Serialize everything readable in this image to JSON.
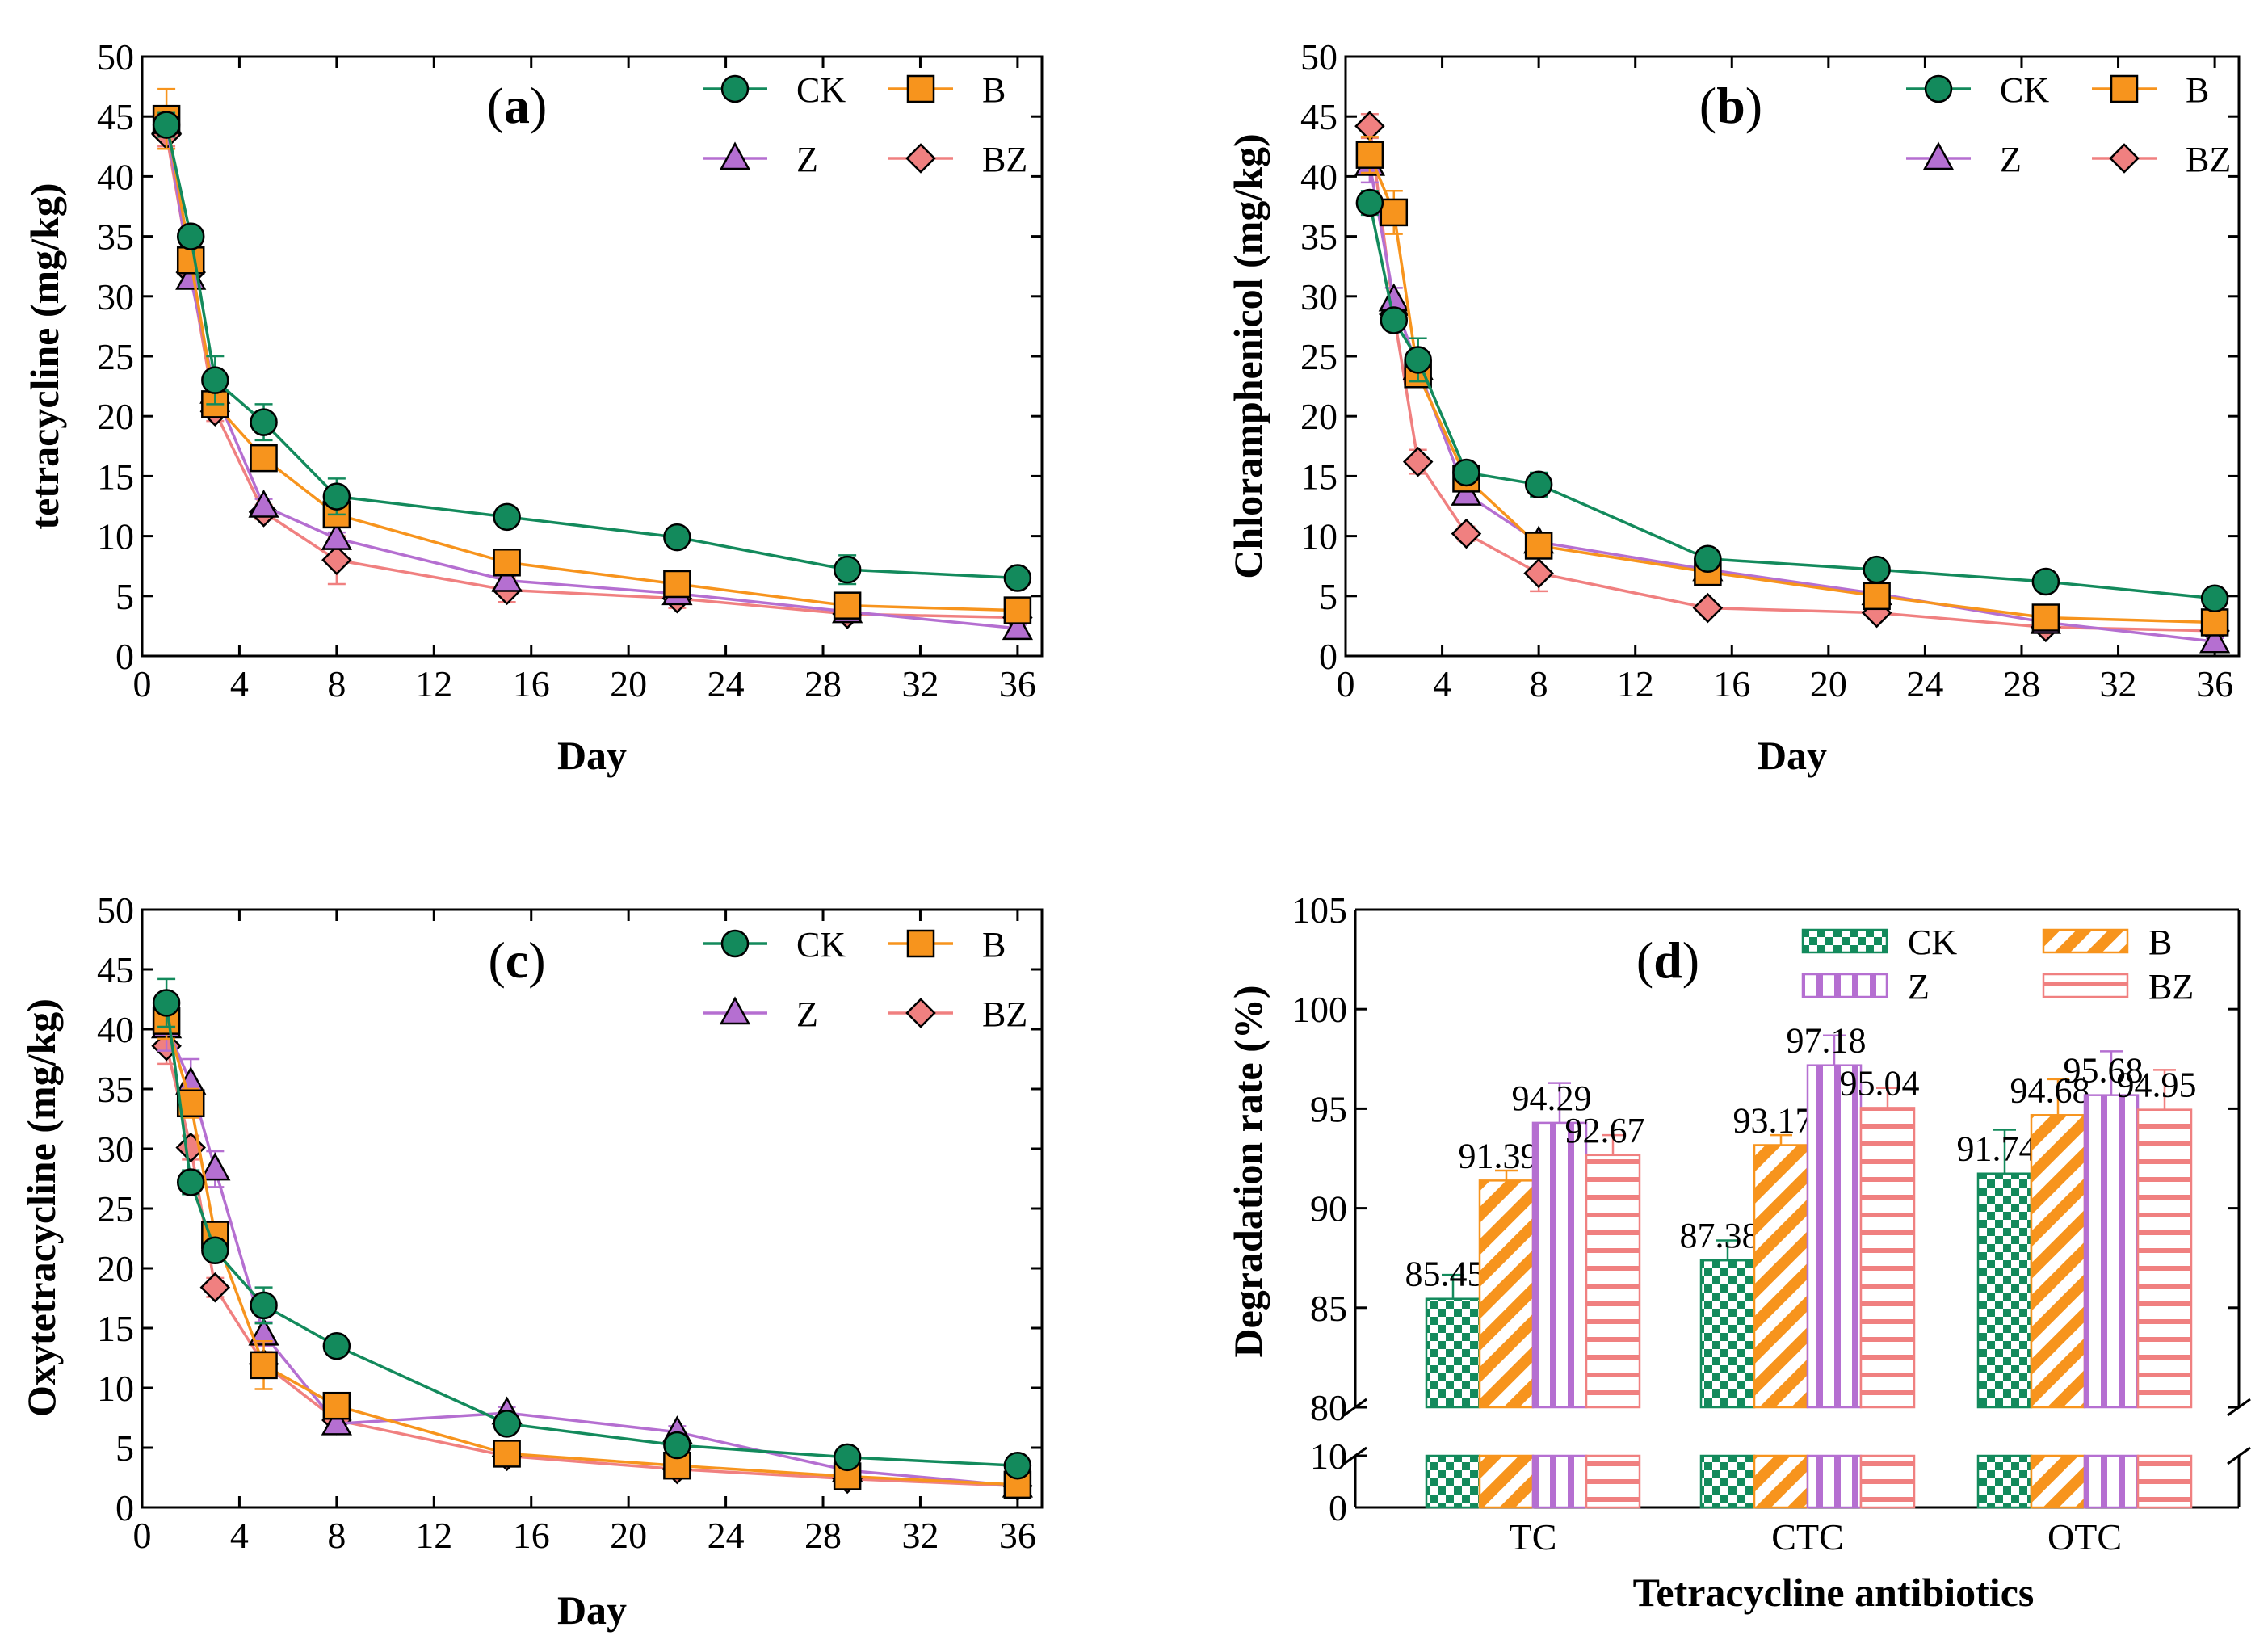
{
  "colors": {
    "CK": "#138a5c",
    "B": "#f7941d",
    "Z": "#b56fd1",
    "BZ": "#f08080"
  },
  "legend": [
    "CK",
    "B",
    "Z",
    "BZ"
  ],
  "chart_data": [
    {
      "id": "a",
      "type": "line",
      "panel_label": "a",
      "xlabel": "Day",
      "ylabel": "tetracycline (mg/kg)",
      "xlim": [
        0,
        37
      ],
      "ylim": [
        0,
        50
      ],
      "xticks": [
        "0",
        "4",
        "8",
        "12",
        "16",
        "20",
        "24",
        "28",
        "32",
        "36"
      ],
      "yticks": [
        "0",
        "5",
        "10",
        "15",
        "20",
        "25",
        "30",
        "35",
        "40",
        "45",
        "50"
      ],
      "x": [
        1,
        2,
        3,
        5,
        8,
        15,
        22,
        29,
        36
      ],
      "series": [
        {
          "name": "CK",
          "marker": "circle",
          "values": [
            44.3,
            35.0,
            23.0,
            19.5,
            13.3,
            11.6,
            9.9,
            7.2,
            6.5
          ],
          "err": [
            1.0,
            0.8,
            2.0,
            1.5,
            1.5,
            0.4,
            0.4,
            1.2,
            0.4
          ]
        },
        {
          "name": "B",
          "marker": "square",
          "values": [
            44.8,
            33.0,
            21.0,
            16.5,
            11.8,
            7.8,
            6.0,
            4.2,
            3.8
          ],
          "err": [
            2.5,
            1.0,
            1.0,
            0.6,
            1.0,
            0.5,
            0.5,
            0.6,
            0.4
          ]
        },
        {
          "name": "Z",
          "marker": "triangle",
          "values": [
            44.5,
            31.5,
            22.0,
            12.5,
            9.8,
            6.3,
            5.2,
            3.7,
            2.3
          ],
          "err": [
            1.0,
            0.8,
            0.8,
            0.6,
            0.5,
            0.4,
            0.4,
            0.4,
            0.3
          ]
        },
        {
          "name": "BZ",
          "marker": "diamond",
          "values": [
            43.5,
            32.0,
            20.4,
            12.0,
            8.0,
            5.5,
            4.8,
            3.5,
            3.2
          ],
          "err": [
            1.0,
            0.8,
            0.8,
            0.6,
            2.0,
            1.0,
            0.8,
            0.4,
            0.4
          ]
        }
      ]
    },
    {
      "id": "b",
      "type": "line",
      "panel_label": "b",
      "xlabel": "Day",
      "ylabel": "Chloramphenicol (mg/kg)",
      "xlim": [
        0,
        37
      ],
      "ylim": [
        0,
        50
      ],
      "xticks": [
        "0",
        "4",
        "8",
        "12",
        "16",
        "20",
        "24",
        "28",
        "32",
        "36"
      ],
      "yticks": [
        "0",
        "5",
        "10",
        "15",
        "20",
        "25",
        "30",
        "35",
        "40",
        "45",
        "50"
      ],
      "x": [
        1,
        2,
        3,
        5,
        8,
        15,
        22,
        29,
        36
      ],
      "series": [
        {
          "name": "CK",
          "marker": "circle",
          "values": [
            37.8,
            28.0,
            24.7,
            15.3,
            14.3,
            8.1,
            7.2,
            6.2,
            4.8
          ],
          "err": [
            1.0,
            0.8,
            1.8,
            0.8,
            1.0,
            0.5,
            0.4,
            0.4,
            0.4
          ]
        },
        {
          "name": "B",
          "marker": "square",
          "values": [
            41.8,
            37.0,
            23.5,
            14.8,
            9.2,
            7.0,
            5.0,
            3.2,
            2.8
          ],
          "err": [
            1.5,
            1.8,
            0.8,
            0.8,
            0.8,
            0.5,
            0.5,
            0.4,
            0.4
          ]
        },
        {
          "name": "Z",
          "marker": "triangle",
          "values": [
            41.0,
            29.7,
            24.0,
            13.5,
            9.5,
            7.2,
            5.2,
            2.8,
            1.2
          ],
          "err": [
            1.5,
            1.0,
            1.0,
            0.8,
            0.6,
            0.5,
            0.5,
            0.4,
            0.3
          ]
        },
        {
          "name": "BZ",
          "marker": "diamond",
          "values": [
            44.2,
            28.5,
            16.2,
            10.2,
            6.9,
            4.0,
            3.6,
            2.4,
            2.1
          ],
          "err": [
            1.0,
            1.0,
            1.0,
            0.6,
            1.5,
            0.4,
            0.4,
            0.4,
            0.3
          ]
        }
      ]
    },
    {
      "id": "c",
      "type": "line",
      "panel_label": "c",
      "xlabel": "Day",
      "ylabel": "Oxytetracycline (mg/kg)",
      "xlim": [
        0,
        37
      ],
      "ylim": [
        0,
        50
      ],
      "xticks": [
        "0",
        "4",
        "8",
        "12",
        "16",
        "20",
        "24",
        "28",
        "32",
        "36"
      ],
      "yticks": [
        "0",
        "5",
        "10",
        "15",
        "20",
        "25",
        "30",
        "35",
        "40",
        "45",
        "50"
      ],
      "x": [
        1,
        2,
        3,
        5,
        8,
        15,
        22,
        29,
        36
      ],
      "series": [
        {
          "name": "CK",
          "marker": "circle",
          "values": [
            42.2,
            27.2,
            21.5,
            16.9,
            13.5,
            7.0,
            5.2,
            4.2,
            3.5
          ],
          "err": [
            2.0,
            1.0,
            0.8,
            1.5,
            0.6,
            0.5,
            0.4,
            0.4,
            0.3
          ]
        },
        {
          "name": "B",
          "marker": "square",
          "values": [
            40.7,
            33.8,
            22.8,
            11.9,
            8.5,
            4.5,
            3.5,
            2.6,
            1.9
          ],
          "err": [
            1.5,
            1.2,
            0.8,
            2.0,
            0.6,
            0.4,
            0.4,
            0.4,
            0.3
          ]
        },
        {
          "name": "Z",
          "marker": "triangle",
          "values": [
            40.2,
            35.5,
            28.3,
            14.5,
            7.0,
            7.9,
            6.3,
            3.1,
            1.8
          ],
          "err": [
            2.0,
            2.0,
            1.5,
            1.0,
            0.6,
            0.5,
            0.5,
            0.4,
            0.3
          ]
        },
        {
          "name": "BZ",
          "marker": "diamond",
          "values": [
            38.6,
            30.1,
            18.4,
            12.0,
            7.3,
            4.3,
            3.2,
            2.4,
            1.8
          ],
          "err": [
            1.5,
            1.0,
            0.8,
            1.0,
            0.5,
            0.4,
            0.4,
            0.4,
            0.3
          ]
        }
      ]
    },
    {
      "id": "d",
      "type": "bar",
      "panel_label": "d",
      "xlabel": "Tetracycline antibiotics",
      "ylabel": "Degradation rate (%)",
      "categories": [
        "TC",
        "CTC",
        "OTC"
      ],
      "ylim": [
        80,
        105
      ],
      "broken_axis": {
        "lower_range": [
          0,
          10
        ],
        "upper_range": [
          80,
          105
        ]
      },
      "yticks": [
        "80",
        "85",
        "90",
        "95",
        "100",
        "105"
      ],
      "lower_yticks": [
        "0",
        "10"
      ],
      "series": [
        {
          "name": "CK",
          "pattern": "checker",
          "values": [
            85.45,
            87.38,
            91.74
          ],
          "labels": [
            "85.45",
            "87.38",
            "91.74"
          ],
          "err": [
            1.2,
            1.0,
            2.2
          ]
        },
        {
          "name": "B",
          "pattern": "diagonal",
          "values": [
            91.39,
            93.17,
            94.68
          ],
          "labels": [
            "91.39",
            "93.17",
            "94.68"
          ],
          "err": [
            0.5,
            0.5,
            1.8
          ]
        },
        {
          "name": "Z",
          "pattern": "vertical",
          "values": [
            94.29,
            97.18,
            95.68
          ],
          "labels": [
            "94.29",
            "97.18",
            "95.68"
          ],
          "err": [
            2.0,
            1.5,
            2.2
          ]
        },
        {
          "name": "BZ",
          "pattern": "horizontal",
          "values": [
            92.67,
            95.04,
            94.95
          ],
          "labels": [
            "92.67",
            "95.04",
            "94.95"
          ],
          "err": [
            1.0,
            1.0,
            2.0
          ]
        }
      ]
    }
  ]
}
